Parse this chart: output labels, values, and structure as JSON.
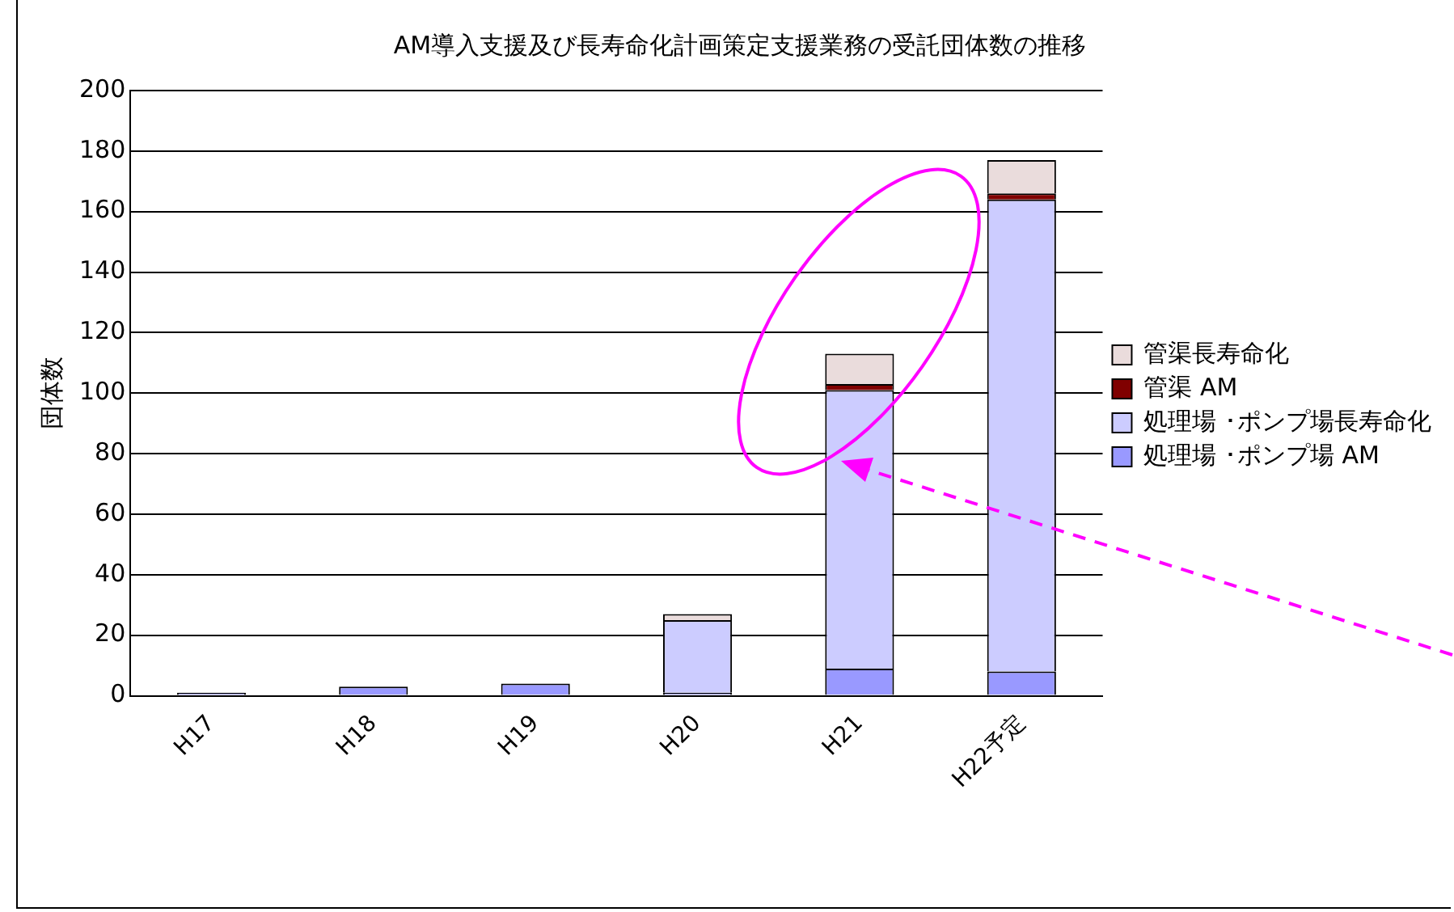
{
  "chart_data": {
    "type": "bar",
    "title": "AM導入支援及び長寿命化計画策定支援業務の受託団体数の推移",
    "ylabel": "団体数",
    "categories": [
      "H17",
      "H18",
      "H19",
      "H20",
      "H21",
      "H22予定"
    ],
    "stacked": true,
    "ylim": [
      0,
      200
    ],
    "yticks": [
      0,
      20,
      40,
      60,
      80,
      100,
      120,
      140,
      160,
      180,
      200
    ],
    "grid": "y",
    "legend": "right",
    "series": [
      {
        "name": "処理場 ･ポンプ場 AM",
        "color": "#9999ff",
        "values": [
          1,
          3,
          4,
          1,
          9,
          8
        ]
      },
      {
        "name": "処理場 ･ポンプ場長寿命化",
        "color": "#ccccff",
        "values": [
          0,
          0,
          0,
          24,
          92,
          156
        ]
      },
      {
        "name": "管渠 AM",
        "color": "#800000",
        "values": [
          0,
          0,
          0,
          0,
          2,
          2
        ]
      },
      {
        "name": "管渠長寿命化",
        "color": "#eadcdc",
        "values": [
          0,
          0,
          0,
          2,
          10,
          11
        ]
      }
    ]
  }
}
